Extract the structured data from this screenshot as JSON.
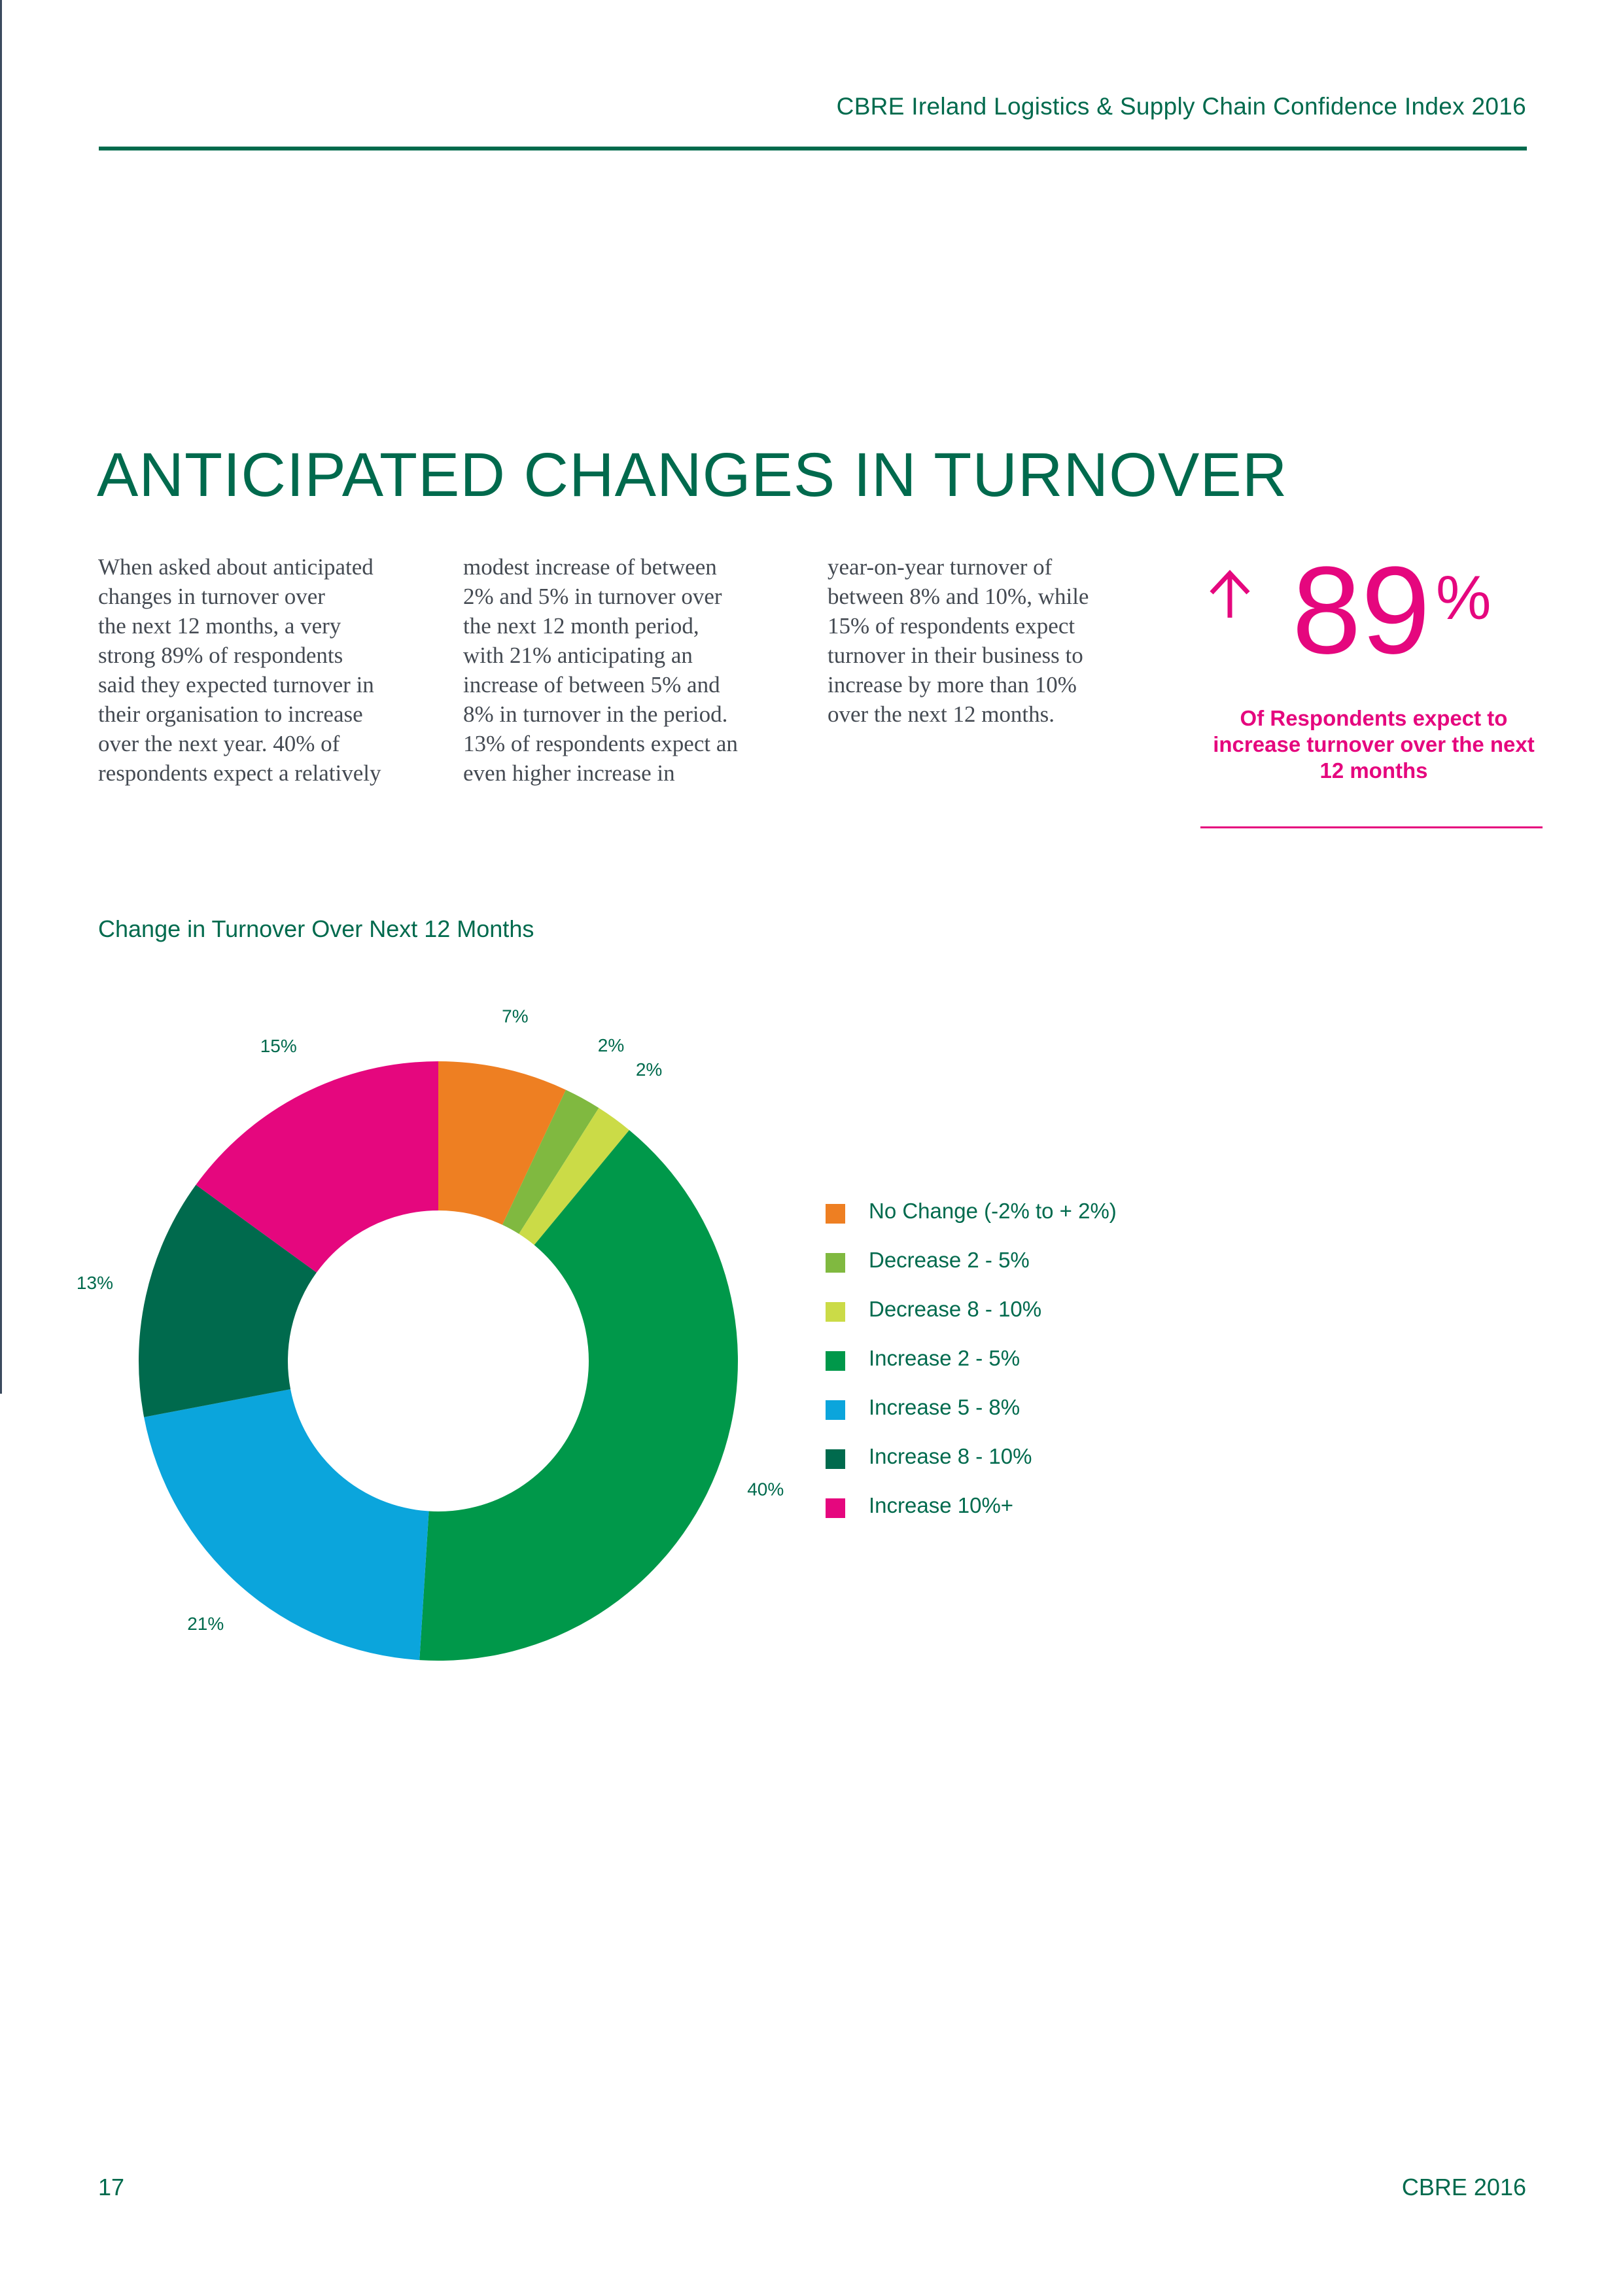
{
  "header": {
    "title": "CBRE Ireland Logistics & Supply Chain Confidence Index 2016"
  },
  "section": {
    "title": "ANTICIPATED CHANGES IN TURNOVER"
  },
  "body_columns": [
    [
      "When asked about anticipated",
      "changes in turnover over",
      "the next 12 months, a very",
      "strong 89% of respondents",
      "said they expected turnover in",
      "their organisation to increase",
      "over the next year.  40% of",
      "respondents expect a relatively"
    ],
    [
      "modest increase of between",
      "2% and 5% in turnover over",
      "the next 12 month period,",
      "with 21% anticipating an",
      "increase of between 5% and",
      "8% in turnover in the period.",
      "13% of respondents expect an",
      "even higher increase in"
    ],
    [
      "year-on-year turnover of",
      "between 8% and 10%, while",
      "15% of respondents expect",
      "turnover in their business to",
      "increase by more than 10%",
      "over the next 12 months."
    ]
  ],
  "callout": {
    "value": "89",
    "unit": "%",
    "text": "Of Respondents expect to increase turnover over the next 12 months",
    "arrow_icon": "arrow-up-icon",
    "color": "#e5077e"
  },
  "chart_title": "Change in Turnover Over Next 12 Months",
  "chart_data": {
    "type": "pie",
    "title": "Change in Turnover Over Next 12 Months",
    "donut": true,
    "start_angle": "12 o'clock",
    "direction": "clockwise",
    "legend_position": "right",
    "series": [
      {
        "name": "No Change (-2% to + 2%)",
        "value": 7,
        "label": "7%",
        "color": "#ee7f22"
      },
      {
        "name": "Decrease 2 - 5%",
        "value": 2,
        "label": "2%",
        "color": "#80b940"
      },
      {
        "name": "Decrease 8 - 10%",
        "value": 2,
        "label": "2%",
        "color": "#cbdb47"
      },
      {
        "name": "Increase 2 - 5%",
        "value": 40,
        "label": "40%",
        "color": "#00984a"
      },
      {
        "name": "Increase 5 - 8%",
        "value": 21,
        "label": "21%",
        "color": "#0ba5dc"
      },
      {
        "name": "Increase 8 - 10%",
        "value": 13,
        "label": "13%",
        "color": "#006a4d"
      },
      {
        "name": "Increase 10%+",
        "value": 15,
        "label": "15%",
        "color": "#e5077e"
      }
    ]
  },
  "footer": {
    "page_number": "17",
    "brand": "CBRE 2016"
  }
}
